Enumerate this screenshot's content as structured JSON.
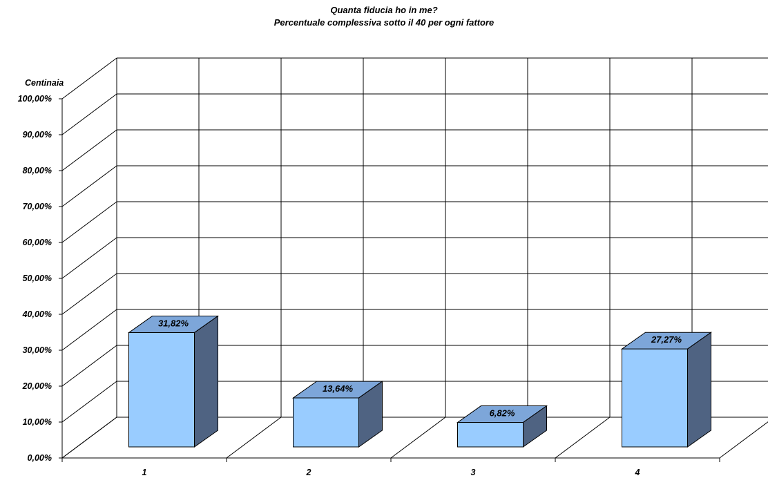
{
  "chart_data": {
    "type": "bar",
    "title": "Quanta fiducia ho in me?",
    "subtitle": "Percentuale complessiva sotto il 40 per ogni fattore",
    "unit_label": "Centinaia",
    "categories": [
      "1",
      "2",
      "3",
      "4"
    ],
    "values": [
      31.82,
      13.64,
      6.82,
      27.27
    ],
    "value_labels": [
      "31,82%",
      "13,64%",
      "6,82%",
      "27,27%"
    ],
    "y_ticks": [
      "0,00%",
      "10,00%",
      "20,00%",
      "30,00%",
      "40,00%",
      "50,00%",
      "60,00%",
      "70,00%",
      "80,00%",
      "90,00%",
      "100,00%"
    ],
    "ylim": [
      0,
      100
    ],
    "grid": true,
    "three_d": true,
    "colors": {
      "front": "#99ccff",
      "top": "#7da6d9",
      "side": "#4f6382",
      "edge": "#000000"
    }
  }
}
